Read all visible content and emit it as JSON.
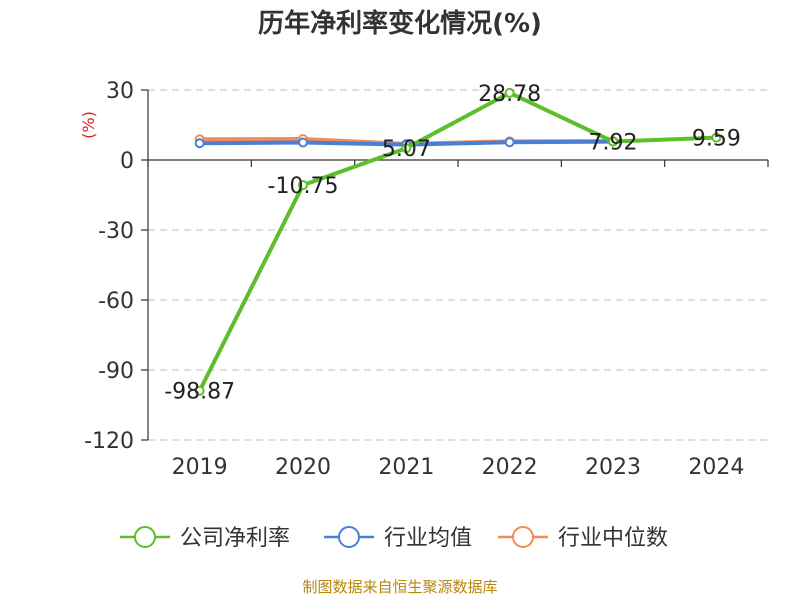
{
  "chart_data": {
    "type": "line",
    "title": "历年净利率变化情况(%)",
    "ylabel": "(%)",
    "categories": [
      "2019",
      "2020",
      "2021",
      "2022",
      "2023",
      "2024"
    ],
    "yticks": [
      "30",
      "0",
      "-30",
      "-60",
      "-90",
      "-120"
    ],
    "ylim": [
      -120,
      30
    ],
    "grid": true,
    "legend_position": "bottom",
    "series": [
      {
        "name": "公司净利率",
        "color": "#5cbf2a",
        "values": [
          -98.87,
          -10.75,
          5.07,
          28.78,
          7.92,
          9.59
        ],
        "labels": [
          "-98.87",
          "-10.75",
          "5.07",
          "28.78",
          "7.92",
          "9.59"
        ]
      },
      {
        "name": "行业均值",
        "color": "#4a7fd6",
        "values": [
          7.2,
          7.5,
          6.6,
          7.6,
          7.9,
          null
        ]
      },
      {
        "name": "行业中位数",
        "color": "#f08b5a",
        "values": [
          8.9,
          9.0,
          6.9,
          8.0,
          8.1,
          null
        ]
      }
    ]
  },
  "source": "制图数据来自恒生聚源数据库"
}
